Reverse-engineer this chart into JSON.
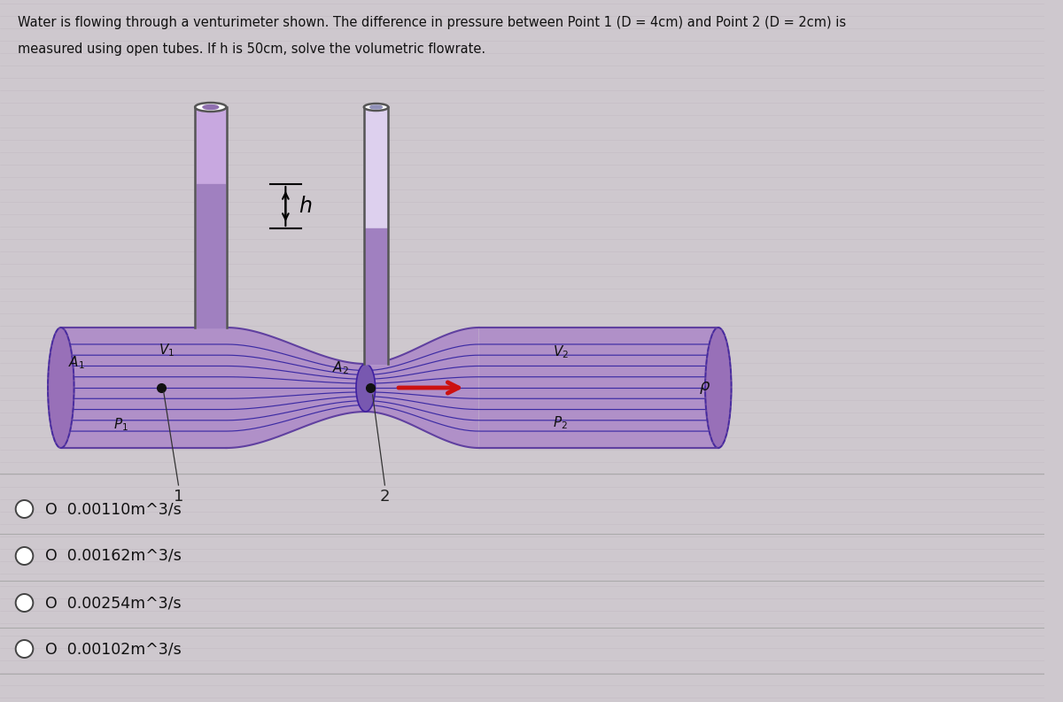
{
  "title_line1": "Water is flowing through a venturimeter shown. The difference in pressure between Point 1 (D = 4cm) and Point 2 (D = 2cm) is",
  "title_line2": "measured using open tubes. If h is 50cm, solve the volumetric flowrate.",
  "options": [
    "0.00110m^3/s",
    "0.00162m^3/s",
    "0.00254m^3/s",
    "0.00102m^3/s"
  ],
  "bg_color": "#d4cdd4",
  "pipe_color": "#b090c8",
  "pipe_edge_color": "#6040a0",
  "flow_line_color": "#3020a0",
  "tube_color_wall": "#808080",
  "tube_fill_color": "#a888c8",
  "arrow_color": "#cc1111",
  "text_color": "#111111",
  "page_bg": "#cec8ce"
}
